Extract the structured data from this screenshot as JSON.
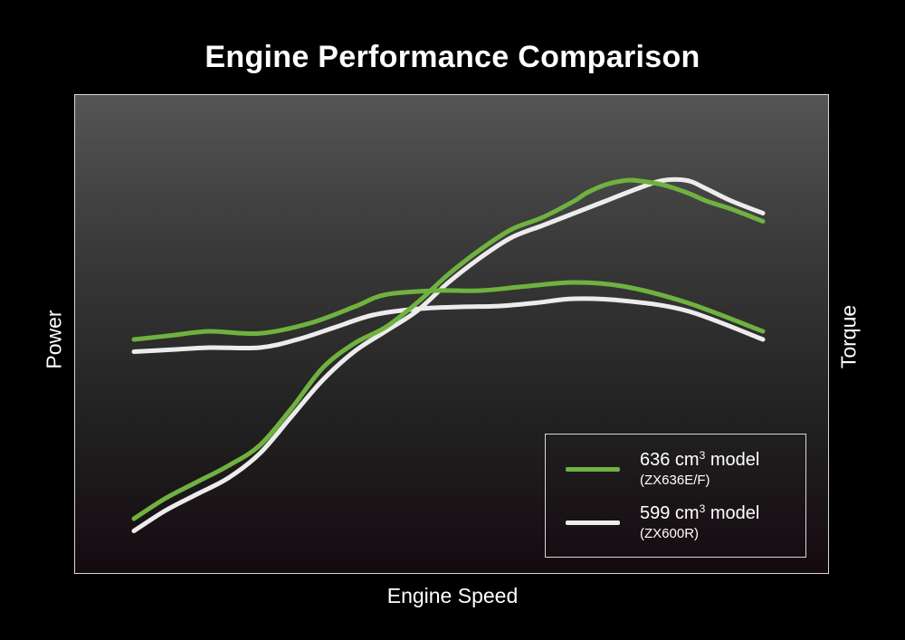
{
  "chart_data": {
    "type": "line",
    "title": "Engine Performance Comparison",
    "xlabel": "Engine Speed",
    "ylabel_left": "Power",
    "ylabel_right": "Torque",
    "xlim": [
      0,
      100
    ],
    "ylim": [
      0,
      100
    ],
    "grid": false,
    "legend_position": "bottom-right",
    "series": [
      {
        "key": "zx636_power",
        "color": "#6fb23f",
        "x": [
          0,
          5,
          10,
          15,
          20,
          25,
          30,
          35,
          40,
          45,
          50,
          55,
          60,
          65,
          70,
          72,
          75,
          78,
          80,
          84,
          88,
          91,
          95,
          100
        ],
        "y": [
          6,
          11,
          15,
          19,
          24,
          33,
          43,
          49,
          53,
          59,
          66,
          72,
          77,
          80,
          84,
          86,
          88,
          89,
          89,
          88,
          86,
          84,
          82,
          79
        ]
      },
      {
        "key": "zx600r_power",
        "color": "#ececec",
        "x": [
          0,
          5,
          10,
          15,
          20,
          25,
          30,
          35,
          40,
          45,
          50,
          55,
          60,
          65,
          70,
          75,
          80,
          84,
          88,
          91,
          95,
          100
        ],
        "y": [
          3,
          8,
          12,
          16,
          22,
          31,
          40,
          47,
          52,
          57,
          64,
          70,
          75,
          78,
          81,
          84,
          87,
          89,
          89,
          87,
          84,
          81
        ]
      },
      {
        "key": "zx636_torque",
        "color": "#6fb23f",
        "x": [
          0,
          6,
          12,
          20,
          28,
          35,
          40,
          48,
          55,
          62,
          70,
          78,
          88,
          100
        ],
        "y": [
          50,
          51,
          52,
          51.5,
          54,
          58,
          61,
          62,
          62,
          63,
          64,
          63,
          59,
          52
        ]
      },
      {
        "key": "zx600r_torque",
        "color": "#ececec",
        "x": [
          0,
          6,
          12,
          20,
          26,
          32,
          38,
          45,
          52,
          58,
          64,
          70,
          78,
          88,
          100
        ],
        "y": [
          47,
          47.5,
          48,
          48,
          50,
          53,
          56,
          57.5,
          58,
          58.2,
          59,
          60,
          59.5,
          57,
          50
        ]
      }
    ]
  },
  "legend": [
    {
      "color": "#6fb23f",
      "name_prefix": "636 cm",
      "name_sup": "3",
      "name_suffix": " model",
      "sub": "(ZX636E/F)"
    },
    {
      "color": "#ececec",
      "name_prefix": "599 cm",
      "name_sup": "3",
      "name_suffix": " model",
      "sub": "(ZX600R)"
    }
  ]
}
